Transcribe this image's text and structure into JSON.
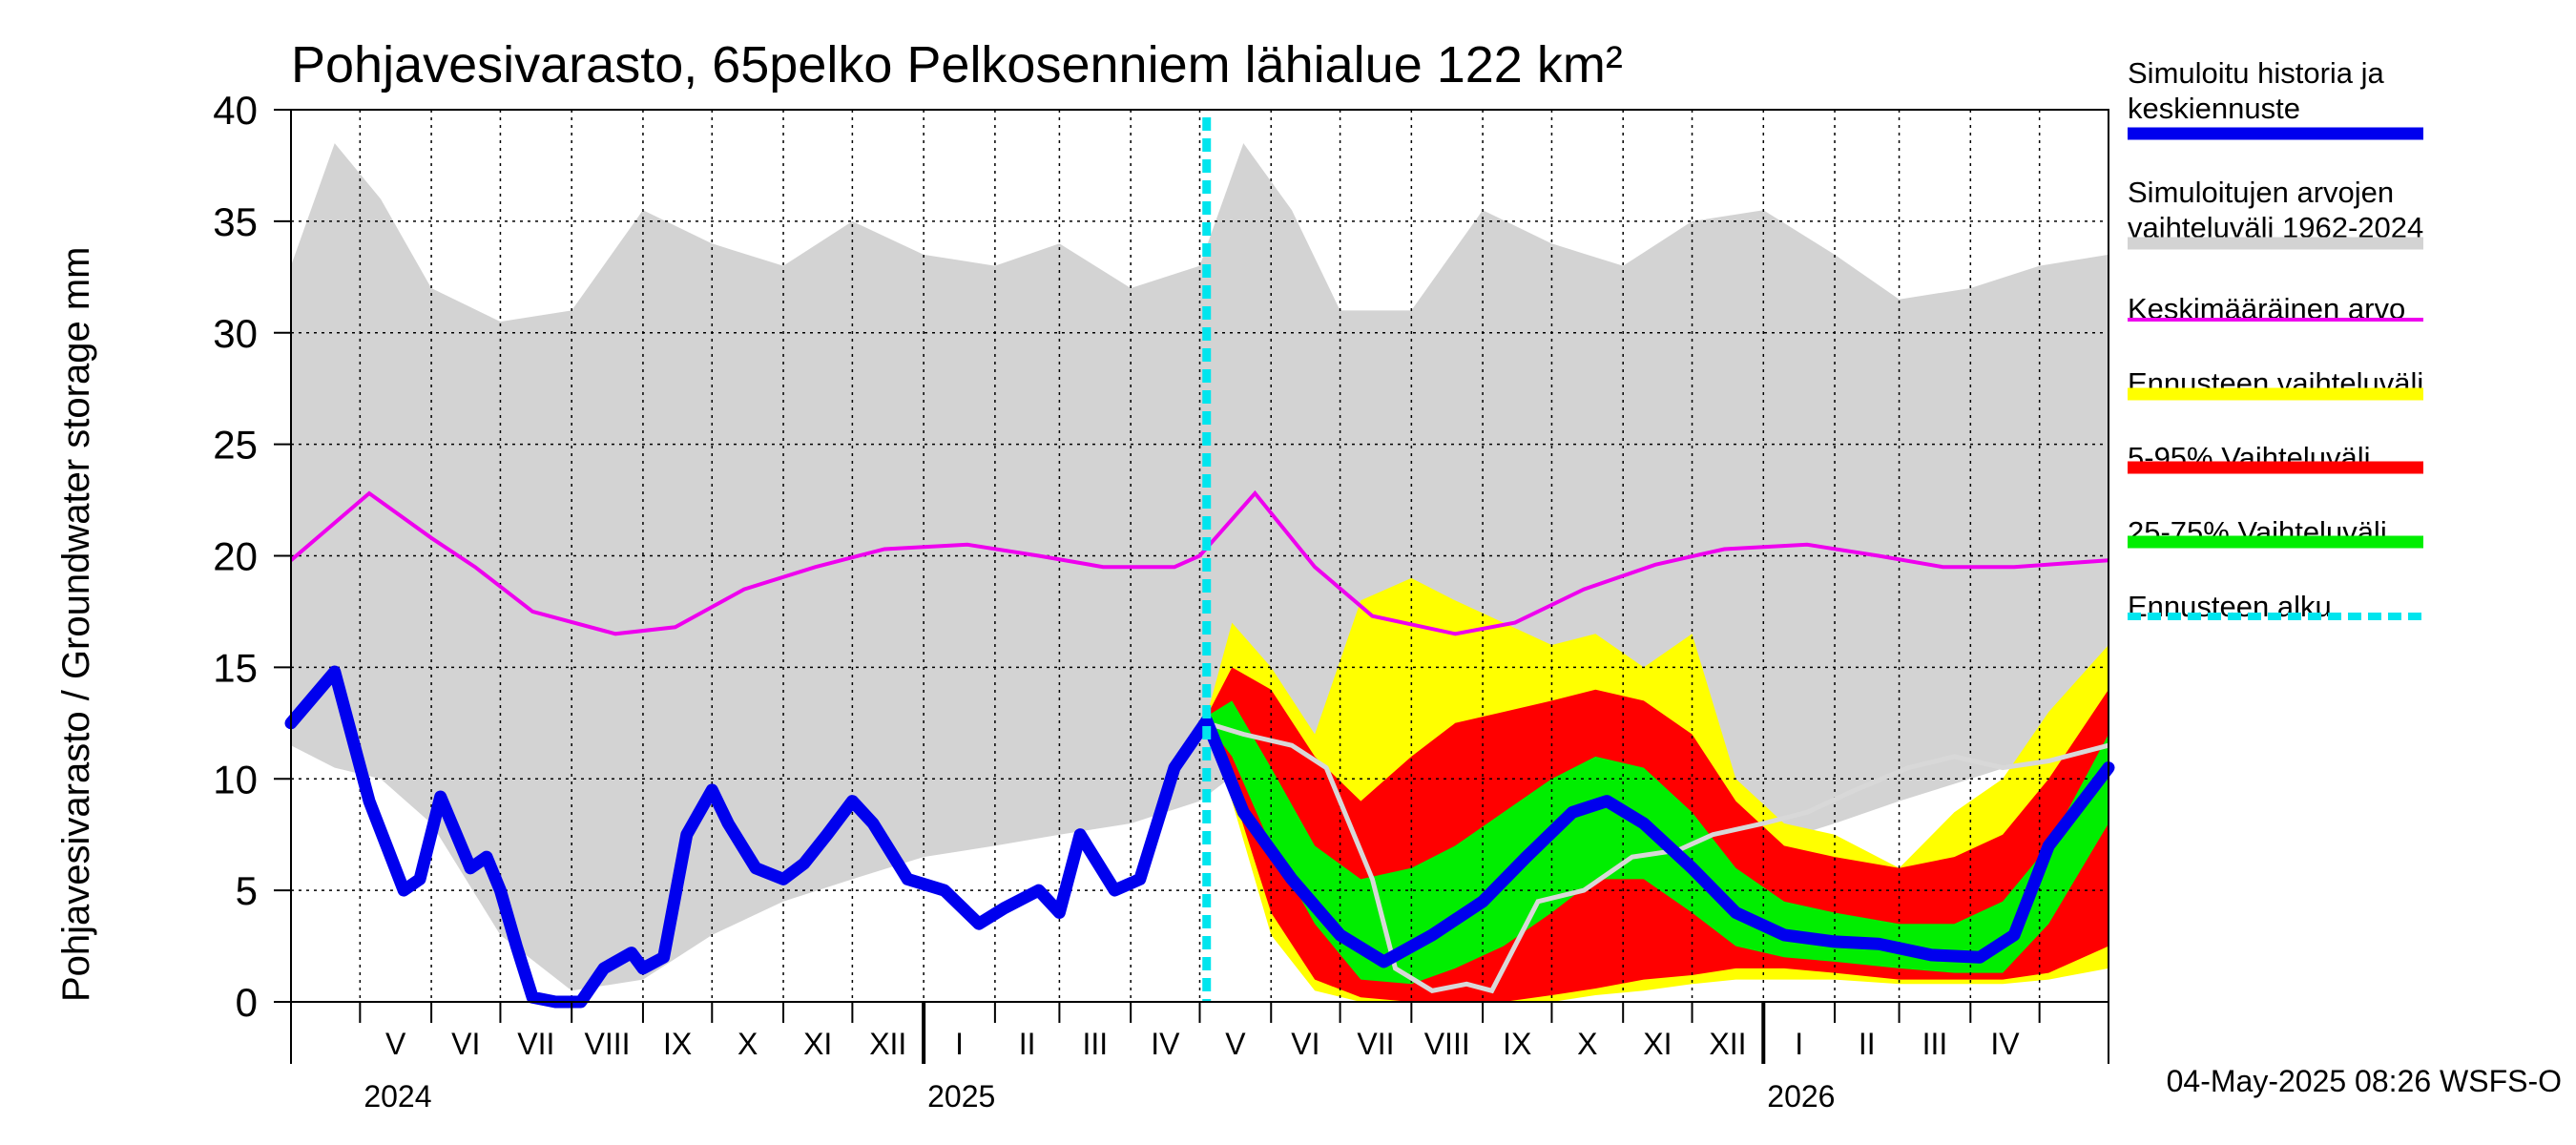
{
  "chart_data": {
    "type": "area",
    "title": "Pohjavesivarasto, 65pelko Pelkosenniem lähialue 122 km²",
    "ylabel": "Pohjavesivarasto / Groundwater storage   mm",
    "yunit": "mm",
    "ylim": [
      0,
      40
    ],
    "yticks": [
      "0",
      "5",
      "10",
      "15",
      "20",
      "25",
      "30",
      "35",
      "40"
    ],
    "xlim": [
      "2024-04-01",
      "2026-05-31"
    ],
    "grid": true,
    "legend_position": "right",
    "forecast_start": "2025-05-04",
    "months": [
      "V",
      "VI",
      "VII",
      "VIII",
      "IX",
      "X",
      "XI",
      "XII",
      "I",
      "II",
      "III",
      "IV",
      "V",
      "VI",
      "VII",
      "VIII",
      "IX",
      "X",
      "XI",
      "XII",
      "I",
      "II",
      "III",
      "IV"
    ],
    "years": [
      "2024",
      "2025",
      "2026"
    ],
    "colors": {
      "history": "#0000ee",
      "range": "#d3d3d3",
      "mean": "#ee00ee",
      "forecast_full": "#ffff00",
      "p5_95": "#ff0000",
      "p25_75": "#00ee00",
      "forecast_start": "#00e5ee",
      "reference": "#d8d8d8"
    },
    "series": [
      {
        "name": "Simuloitu historia ja keskiennuste",
        "type": "line",
        "x": [
          "2024-04-01",
          "2024-04-20",
          "2024-05-05",
          "2024-05-20",
          "2024-05-27",
          "2024-06-05",
          "2024-06-18",
          "2024-06-25",
          "2024-07-01",
          "2024-07-08",
          "2024-07-15",
          "2024-07-25",
          "2024-08-05",
          "2024-08-15",
          "2024-08-27",
          "2024-09-01",
          "2024-09-10",
          "2024-09-20",
          "2024-10-01",
          "2024-10-08",
          "2024-10-20",
          "2024-11-01",
          "2024-11-10",
          "2024-11-20",
          "2024-12-01",
          "2024-12-10",
          "2024-12-25",
          "2025-01-10",
          "2025-01-25",
          "2025-02-05",
          "2025-02-20",
          "2025-03-01",
          "2025-03-10",
          "2025-03-25",
          "2025-04-05",
          "2025-04-20",
          "2025-05-04",
          "2025-05-20",
          "2025-06-10",
          "2025-07-01",
          "2025-07-20",
          "2025-08-10",
          "2025-09-01",
          "2025-09-20",
          "2025-10-10",
          "2025-10-25",
          "2025-11-10",
          "2025-12-01",
          "2025-12-20",
          "2026-01-10",
          "2026-02-01",
          "2026-02-20",
          "2026-03-15",
          "2026-04-05",
          "2026-04-20",
          "2026-05-05",
          "2026-05-31"
        ],
        "y": [
          12.5,
          14.8,
          9,
          5,
          5.5,
          9.2,
          6,
          6.5,
          5,
          2.5,
          0.2,
          0,
          0,
          1.5,
          2.2,
          1.5,
          2,
          7.5,
          9.5,
          8,
          6,
          5.5,
          6.2,
          7.5,
          9,
          8,
          5.5,
          5,
          3.5,
          4.2,
          5,
          4,
          7.5,
          5,
          5.5,
          10.5,
          12.6,
          8.5,
          5.5,
          3,
          1.8,
          3,
          4.5,
          6.5,
          8.5,
          9,
          8,
          6,
          4,
          3,
          2.7,
          2.6,
          2.1,
          2,
          3,
          7,
          10.5
        ]
      },
      {
        "name": "Simuloitujen arvojen vaihteluväli 1962-2024",
        "type": "band",
        "x": [
          "2024-04-01",
          "2024-04-20",
          "2024-05-10",
          "2024-06-01",
          "2024-07-01",
          "2024-08-01",
          "2024-09-01",
          "2024-10-01",
          "2024-11-01",
          "2024-12-01",
          "2025-01-01",
          "2025-02-01",
          "2025-03-01",
          "2025-04-01",
          "2025-05-01",
          "2025-05-20",
          "2025-06-10",
          "2025-07-01",
          "2025-08-01",
          "2025-09-01",
          "2025-10-01",
          "2025-11-01",
          "2025-12-01",
          "2026-01-01",
          "2026-02-01",
          "2026-03-01",
          "2026-04-01",
          "2026-05-01",
          "2026-05-31"
        ],
        "low": [
          11.5,
          10.5,
          10,
          8,
          3,
          0.5,
          1,
          3,
          4.5,
          5.5,
          6.5,
          7,
          7.5,
          8,
          9,
          10.5,
          7.5,
          3,
          0.5,
          0.8,
          3,
          5,
          6,
          7,
          8,
          9,
          10,
          11,
          11.5
        ],
        "high": [
          33,
          38.5,
          36,
          32,
          30.5,
          31,
          35.5,
          34,
          33,
          35,
          33.5,
          33,
          34,
          32,
          33,
          38.5,
          35.5,
          31,
          31,
          35.5,
          34,
          33,
          35,
          35.5,
          33.5,
          31.5,
          32,
          33,
          33.5
        ]
      },
      {
        "name": "Keskimääräinen arvo",
        "type": "line",
        "x": [
          "2024-04-01",
          "2024-05-05",
          "2024-06-01",
          "2024-06-20",
          "2024-07-15",
          "2024-08-20",
          "2024-09-15",
          "2024-10-15",
          "2024-11-15",
          "2024-12-15",
          "2025-01-20",
          "2025-02-20",
          "2025-03-20",
          "2025-04-20",
          "2025-05-01",
          "2025-05-25",
          "2025-06-20",
          "2025-07-15",
          "2025-08-20",
          "2025-09-15",
          "2025-10-15",
          "2025-11-15",
          "2025-12-15",
          "2026-01-20",
          "2026-02-20",
          "2026-03-20",
          "2026-04-20",
          "2026-05-31"
        ],
        "y": [
          19.8,
          22.8,
          20.8,
          19.5,
          17.5,
          16.5,
          16.8,
          18.5,
          19.5,
          20.3,
          20.5,
          20,
          19.5,
          19.5,
          20,
          22.8,
          19.5,
          17.3,
          16.5,
          17,
          18.5,
          19.6,
          20.3,
          20.5,
          20,
          19.5,
          19.5,
          19.8
        ]
      },
      {
        "name": "Ennusteen vaihteluväli",
        "type": "band",
        "x": [
          "2025-05-04",
          "2025-05-15",
          "2025-06-01",
          "2025-06-20",
          "2025-07-10",
          "2025-08-01",
          "2025-08-20",
          "2025-09-10",
          "2025-10-01",
          "2025-10-20",
          "2025-11-10",
          "2025-12-01",
          "2025-12-20",
          "2026-01-10",
          "2026-02-01",
          "2026-03-01",
          "2026-03-25",
          "2026-04-15",
          "2026-05-05",
          "2026-05-31"
        ],
        "low": [
          12.5,
          9,
          3,
          0.5,
          0,
          0,
          0,
          0,
          0,
          0.3,
          0.5,
          0.8,
          1,
          1,
          1,
          0.8,
          0.8,
          0.8,
          1,
          1.5
        ],
        "high": [
          12.8,
          17,
          15,
          12,
          18,
          19,
          18,
          17,
          16,
          16.5,
          15,
          16.5,
          10,
          8,
          7.5,
          6,
          8.5,
          10,
          13,
          16
        ]
      },
      {
        "name": "5-95% Vaihteluväli",
        "type": "band",
        "x": [
          "2025-05-04",
          "2025-05-15",
          "2025-06-01",
          "2025-06-20",
          "2025-07-10",
          "2025-08-01",
          "2025-08-20",
          "2025-09-10",
          "2025-10-01",
          "2025-10-20",
          "2025-11-10",
          "2025-12-01",
          "2025-12-20",
          "2026-01-10",
          "2026-02-01",
          "2026-03-01",
          "2026-03-25",
          "2026-04-15",
          "2026-05-05",
          "2026-05-31"
        ],
        "low": [
          12.5,
          9.5,
          4,
          1,
          0.2,
          0,
          0,
          0,
          0.3,
          0.6,
          1,
          1.2,
          1.5,
          1.5,
          1.3,
          1,
          1,
          1,
          1.3,
          2.5
        ],
        "high": [
          12.8,
          15,
          14,
          11,
          9,
          11,
          12.5,
          13,
          13.5,
          14,
          13.5,
          12,
          9,
          7,
          6.5,
          6,
          6.5,
          7.5,
          10,
          14
        ]
      },
      {
        "name": "25-75% Vaihteluväli",
        "type": "band",
        "x": [
          "2025-05-04",
          "2025-05-15",
          "2025-06-01",
          "2025-06-20",
          "2025-07-10",
          "2025-08-01",
          "2025-08-20",
          "2025-09-10",
          "2025-10-01",
          "2025-10-20",
          "2025-11-10",
          "2025-12-01",
          "2025-12-20",
          "2026-01-10",
          "2026-02-01",
          "2026-03-01",
          "2026-03-25",
          "2026-04-15",
          "2026-05-05",
          "2026-05-31"
        ],
        "low": [
          12.5,
          11,
          7,
          3.5,
          1,
          0.8,
          1.5,
          2.5,
          4,
          5.5,
          5.5,
          4,
          2.5,
          2,
          1.8,
          1.5,
          1.3,
          1.3,
          3.5,
          8
        ]
      },
      {
        "name": "Ennusteen alku",
        "type": "vline",
        "x": "2025-05-04"
      },
      {
        "name": "",
        "type": "line",
        "x": [
          "2025-05-04",
          "2025-05-20",
          "2025-06-10",
          "2025-06-25",
          "2025-07-15",
          "2025-07-25",
          "2025-08-10",
          "2025-08-25",
          "2025-09-05",
          "2025-09-25",
          "2025-10-15",
          "2025-11-05",
          "2025-11-25",
          "2025-12-10",
          "2026-01-01",
          "2026-01-20",
          "2026-02-10",
          "2026-03-05",
          "2026-03-25",
          "2026-04-15",
          "2026-05-05",
          "2026-05-31"
        ],
        "y": [
          12.5,
          12,
          11.5,
          10.5,
          5.5,
          1.5,
          0.5,
          0.8,
          0.5,
          4.5,
          5,
          6.5,
          6.8,
          7.5,
          8,
          8.5,
          9.5,
          10.5,
          11,
          10.5,
          10.8,
          11.5
        ]
      }
    ]
  },
  "legend": [
    {
      "line1": "Simuloitu historia ja",
      "line2": "keskiennuste",
      "color": "#0000ee",
      "style": "thick"
    },
    {
      "line1": "Simuloitujen arvojen",
      "line2": "vaihteluväli 1962-2024",
      "color": "#d3d3d3",
      "style": "thick"
    },
    {
      "line1": "Keskimääräinen arvo",
      "line2": "",
      "color": "#ee00ee",
      "style": "thin"
    },
    {
      "line1": "Ennusteen vaihteluväli",
      "line2": "",
      "color": "#ffff00",
      "style": "thick"
    },
    {
      "line1": "5-95% Vaihteluväli",
      "line2": "",
      "color": "#ff0000",
      "style": "thick"
    },
    {
      "line1": "25-75% Vaihteluväli",
      "line2": "",
      "color": "#00ee00",
      "style": "thick"
    },
    {
      "line1": "Ennusteen alku",
      "line2": "",
      "color": "#00e5ee",
      "style": "dashed"
    }
  ],
  "footer": "04-May-2025 08:26 WSFS-O"
}
